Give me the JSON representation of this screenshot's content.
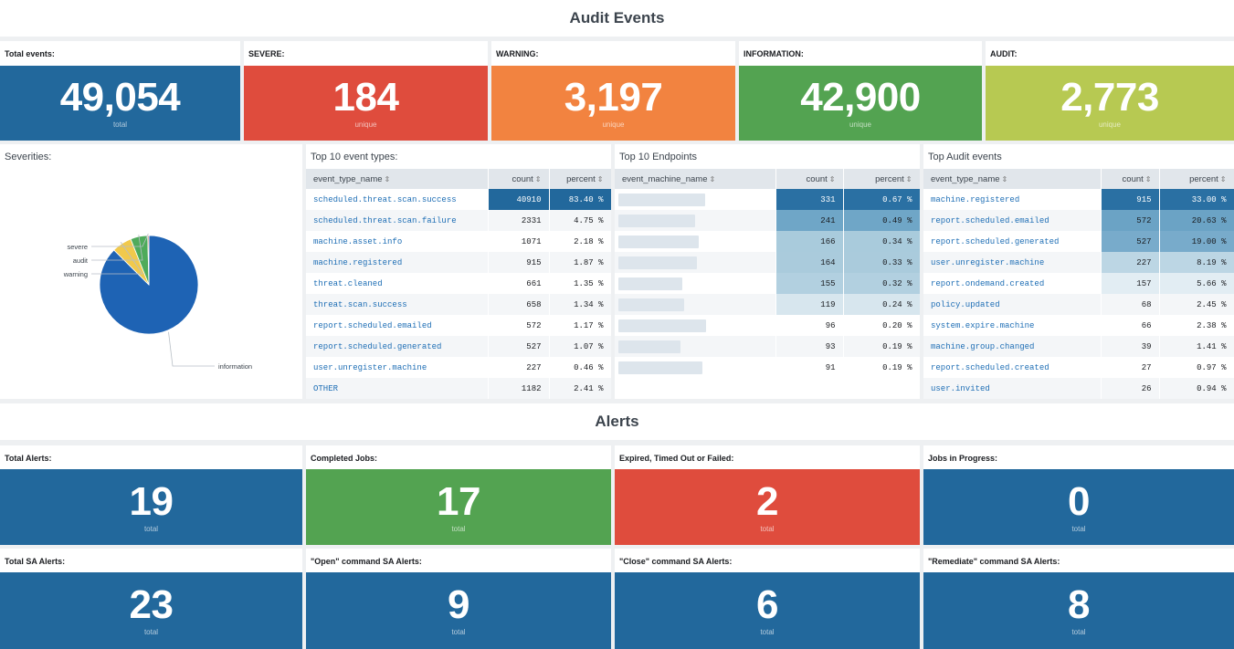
{
  "audit": {
    "title": "Audit Events",
    "singles": [
      {
        "label": "Total events:",
        "value": "49,054",
        "under": "total",
        "color": "#22689c"
      },
      {
        "label": "SEVERE:",
        "value": "184",
        "under": "unique",
        "color": "#df4c3d"
      },
      {
        "label": "WARNING:",
        "value": "3,197",
        "under": "unique",
        "color": "#f28340"
      },
      {
        "label": "INFORMATION:",
        "value": "42,900",
        "under": "unique",
        "color": "#53a351"
      },
      {
        "label": "AUDIT:",
        "value": "2,773",
        "under": "unique",
        "color": "#b7c952"
      }
    ],
    "severities": {
      "title": "Severities:",
      "chart_data": {
        "type": "pie",
        "title": "Severities:",
        "categories": [
          "information",
          "warning",
          "audit",
          "severe"
        ],
        "values": [
          42900,
          3197,
          2773,
          184
        ],
        "colors": [
          "#1e63b4",
          "#f1c94c",
          "#4fab5b",
          "#c84a3c"
        ]
      }
    },
    "top_event_types": {
      "title": "Top 10 event types:",
      "columns": [
        "event_type_name",
        "count",
        "percent"
      ],
      "rows": [
        [
          "scheduled.threat.scan.success",
          "40910",
          "83.40 %"
        ],
        [
          "scheduled.threat.scan.failure",
          "2331",
          "4.75 %"
        ],
        [
          "machine.asset.info",
          "1071",
          "2.18 %"
        ],
        [
          "machine.registered",
          "915",
          "1.87 %"
        ],
        [
          "threat.cleaned",
          "661",
          "1.35 %"
        ],
        [
          "threat.scan.success",
          "658",
          "1.34 %"
        ],
        [
          "report.scheduled.emailed",
          "572",
          "1.17 %"
        ],
        [
          "report.scheduled.generated",
          "527",
          "1.07 %"
        ],
        [
          "user.unregister.machine",
          "227",
          "0.46 %"
        ],
        [
          "OTHER",
          "1182",
          "2.41 %"
        ]
      ],
      "heat": [
        "#22689c",
        "none",
        "none",
        "none",
        "none",
        "none",
        "none",
        "none",
        "none",
        "none"
      ]
    },
    "top_endpoints": {
      "title": "Top 10 Endpoints",
      "columns": [
        "event_machine_name",
        "count",
        "percent"
      ],
      "rows": [
        [
          "",
          "331",
          "0.67 %"
        ],
        [
          "",
          "241",
          "0.49 %"
        ],
        [
          "",
          "166",
          "0.34 %"
        ],
        [
          "",
          "164",
          "0.33 %"
        ],
        [
          "",
          "155",
          "0.32 %"
        ],
        [
          "",
          "119",
          "0.24 %"
        ],
        [
          "",
          "96",
          "0.20 %"
        ],
        [
          "",
          "93",
          "0.19 %"
        ],
        [
          "",
          "91",
          "0.19 %"
        ]
      ],
      "heat": [
        "#2a70a3",
        "#6fa6c7",
        "#a9cbdc",
        "#aacbdc",
        "#b2d0e0",
        "#d7e6ee",
        "none",
        "none",
        "none"
      ]
    },
    "top_audit": {
      "title": "Top Audit events",
      "columns": [
        "event_type_name",
        "count",
        "percent"
      ],
      "rows": [
        [
          "machine.registered",
          "915",
          "33.00 %"
        ],
        [
          "report.scheduled.emailed",
          "572",
          "20.63 %"
        ],
        [
          "report.scheduled.generated",
          "527",
          "19.00 %"
        ],
        [
          "user.unregister.machine",
          "227",
          "8.19 %"
        ],
        [
          "report.ondemand.created",
          "157",
          "5.66 %"
        ],
        [
          "policy.updated",
          "68",
          "2.45 %"
        ],
        [
          "system.expire.machine",
          "66",
          "2.38 %"
        ],
        [
          "machine.group.changed",
          "39",
          "1.41 %"
        ],
        [
          "report.scheduled.created",
          "27",
          "0.97 %"
        ],
        [
          "user.invited",
          "26",
          "0.94 %"
        ]
      ],
      "heat": [
        "#2a70a3",
        "#6ba3c5",
        "#78abcb",
        "#bcd6e4",
        "#e2edf3",
        "none",
        "none",
        "none",
        "none",
        "none"
      ]
    }
  },
  "alerts": {
    "title": "Alerts",
    "singles": [
      {
        "label": "Total Alerts:",
        "value": "19",
        "under": "total",
        "color": "#22689c"
      },
      {
        "label": "Completed Jobs:",
        "value": "17",
        "under": "total",
        "color": "#53a351"
      },
      {
        "label": "Expired, Timed Out or Failed:",
        "value": "2",
        "under": "total",
        "color": "#df4c3d"
      },
      {
        "label": "Jobs in Progress:",
        "value": "0",
        "under": "total",
        "color": "#22689c"
      },
      {
        "label": "Total SA Alerts:",
        "value": "23",
        "under": "total",
        "color": "#22689c"
      },
      {
        "label": "\"Open\" command SA Alerts:",
        "value": "9",
        "under": "total",
        "color": "#22689c"
      },
      {
        "label": "\"Close\" command SA Alerts:",
        "value": "6",
        "under": "total",
        "color": "#22689c"
      },
      {
        "label": "\"Remediate\" command SA Alerts:",
        "value": "8",
        "under": "total",
        "color": "#22689c"
      }
    ]
  },
  "icons": {
    "sort": "sort-icon"
  }
}
